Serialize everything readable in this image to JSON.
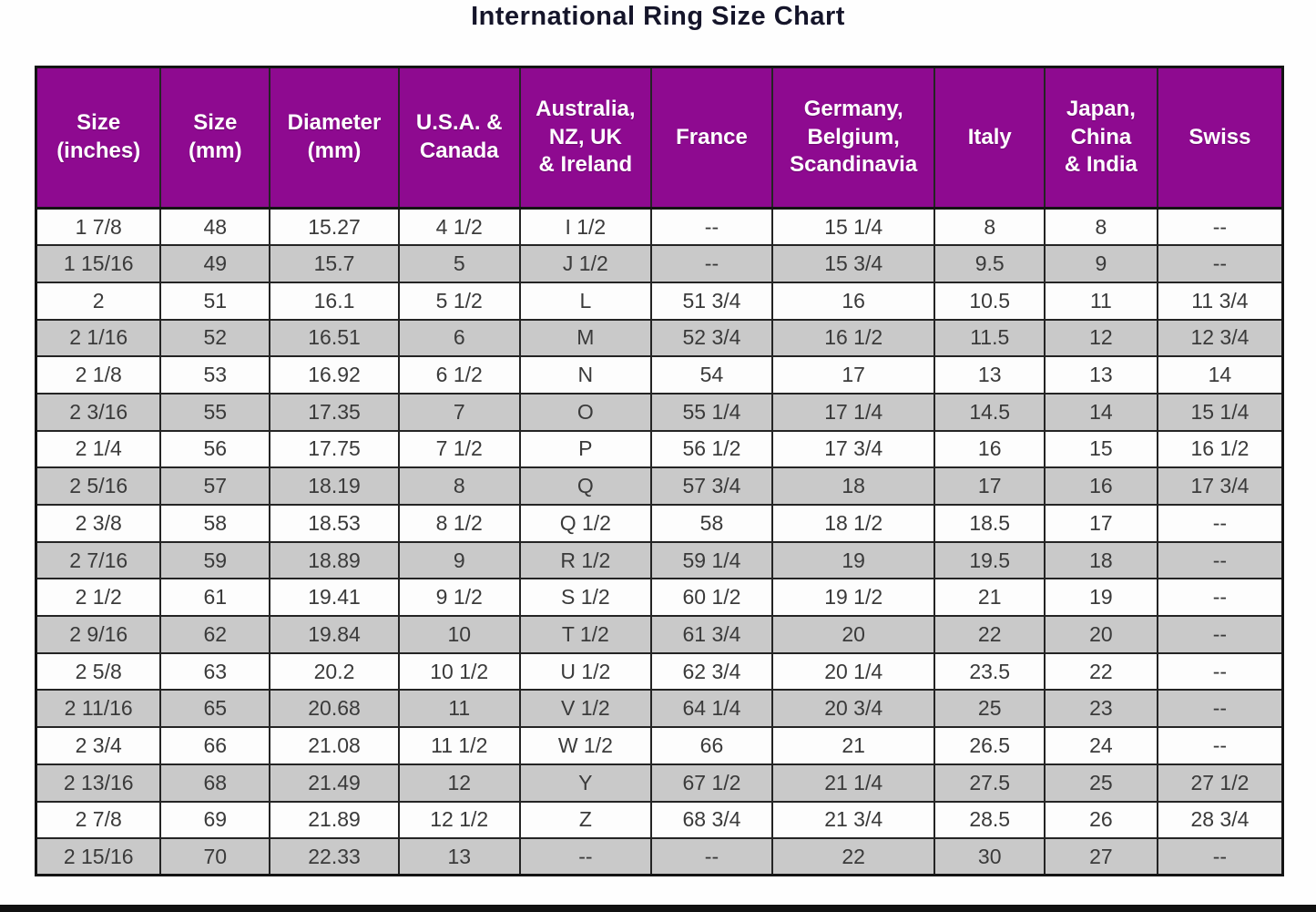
{
  "title": "International Ring Size Chart",
  "colors": {
    "header_bg": "#8E0A90",
    "header_text": "#FFFFFF",
    "row_even_bg": "#C9C9C9",
    "row_odd_bg": "#FDFDFD",
    "border": "#242424",
    "cell_text": "#3A3A3A",
    "title_text": "#15152A",
    "bottom_bar": "#111111"
  },
  "table": {
    "display_headers": [
      "Size\n(inches)",
      "Size\n(mm)",
      "Diameter\n(mm)",
      "U.S.A. &\nCanada",
      "Australia,\nNZ, UK\n& Ireland",
      "France",
      "Germany,\nBelgium,\nScandinavia",
      "Italy",
      "Japan,\nChina\n& India",
      "Swiss"
    ]
  },
  "chart_data": {
    "type": "table",
    "title": "International Ring Size Chart",
    "columns": [
      "Size (inches)",
      "Size (mm)",
      "Diameter (mm)",
      "U.S.A. & Canada",
      "Australia, NZ, UK & Ireland",
      "France",
      "Germany, Belgium, Scandinavia",
      "Italy",
      "Japan, China & India",
      "Swiss"
    ],
    "rows": [
      [
        "1 7/8",
        "48",
        "15.27",
        "4 1/2",
        "I 1/2",
        "--",
        "15 1/4",
        "8",
        "8",
        "--"
      ],
      [
        "1 15/16",
        "49",
        "15.7",
        "5",
        "J 1/2",
        "--",
        "15 3/4",
        "9.5",
        "9",
        "--"
      ],
      [
        "2",
        "51",
        "16.1",
        "5 1/2",
        "L",
        "51 3/4",
        "16",
        "10.5",
        "11",
        "11 3/4"
      ],
      [
        "2 1/16",
        "52",
        "16.51",
        "6",
        "M",
        "52 3/4",
        "16 1/2",
        "11.5",
        "12",
        "12 3/4"
      ],
      [
        "2 1/8",
        "53",
        "16.92",
        "6 1/2",
        "N",
        "54",
        "17",
        "13",
        "13",
        "14"
      ],
      [
        "2 3/16",
        "55",
        "17.35",
        "7",
        "O",
        "55 1/4",
        "17 1/4",
        "14.5",
        "14",
        "15 1/4"
      ],
      [
        "2 1/4",
        "56",
        "17.75",
        "7 1/2",
        "P",
        "56 1/2",
        "17 3/4",
        "16",
        "15",
        "16 1/2"
      ],
      [
        "2 5/16",
        "57",
        "18.19",
        "8",
        "Q",
        "57 3/4",
        "18",
        "17",
        "16",
        "17 3/4"
      ],
      [
        "2 3/8",
        "58",
        "18.53",
        "8 1/2",
        "Q 1/2",
        "58",
        "18 1/2",
        "18.5",
        "17",
        "--"
      ],
      [
        "2 7/16",
        "59",
        "18.89",
        "9",
        "R 1/2",
        "59 1/4",
        "19",
        "19.5",
        "18",
        "--"
      ],
      [
        "2 1/2",
        "61",
        "19.41",
        "9 1/2",
        "S 1/2",
        "60 1/2",
        "19 1/2",
        "21",
        "19",
        "--"
      ],
      [
        "2 9/16",
        "62",
        "19.84",
        "10",
        "T 1/2",
        "61 3/4",
        "20",
        "22",
        "20",
        "--"
      ],
      [
        "2 5/8",
        "63",
        "20.2",
        "10 1/2",
        "U 1/2",
        "62 3/4",
        "20 1/4",
        "23.5",
        "22",
        "--"
      ],
      [
        "2 11/16",
        "65",
        "20.68",
        "11",
        "V 1/2",
        "64 1/4",
        "20 3/4",
        "25",
        "23",
        "--"
      ],
      [
        "2 3/4",
        "66",
        "21.08",
        "11 1/2",
        "W 1/2",
        "66",
        "21",
        "26.5",
        "24",
        "--"
      ],
      [
        "2 13/16",
        "68",
        "21.49",
        "12",
        "Y",
        "67 1/2",
        "21 1/4",
        "27.5",
        "25",
        "27 1/2"
      ],
      [
        "2 7/8",
        "69",
        "21.89",
        "12 1/2",
        "Z",
        "68 3/4",
        "21 3/4",
        "28.5",
        "26",
        "28 3/4"
      ],
      [
        "2 15/16",
        "70",
        "22.33",
        "13",
        "--",
        "--",
        "22",
        "30",
        "27",
        "--"
      ]
    ]
  }
}
